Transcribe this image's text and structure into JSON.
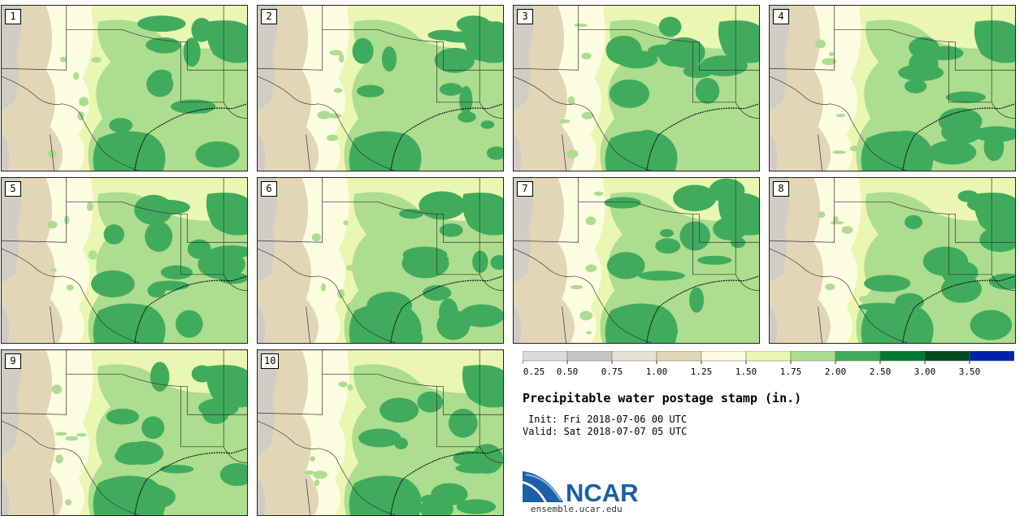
{
  "panels": [
    {
      "label": "1"
    },
    {
      "label": "2"
    },
    {
      "label": "3"
    },
    {
      "label": "4"
    },
    {
      "label": "5"
    },
    {
      "label": "6"
    },
    {
      "label": "7"
    },
    {
      "label": "8"
    },
    {
      "label": "9"
    },
    {
      "label": "10"
    }
  ],
  "legend": {
    "colors": [
      "#dbdbdb",
      "#c6c6c6",
      "#e5e3d4",
      "#e3d6b6",
      "#fcfce1",
      "#e9f7b2",
      "#addd8e",
      "#41ab5d",
      "#007a32",
      "#004a1f",
      "#0022aa"
    ],
    "ticks": [
      "0.25",
      "0.50",
      "0.75",
      "1.00",
      "1.25",
      "1.50",
      "1.75",
      "2.00",
      "2.50",
      "3.00",
      "3.50"
    ]
  },
  "map_colors": {
    "dry": "#e3d6b6",
    "moderate": "#fcfce1",
    "light_green": "#e9f7b2",
    "green": "#addd8e",
    "dark_green": "#41ab5d",
    "terrain": "#c9c9c9"
  },
  "title": "Precipitable water postage stamp (in.)",
  "init": "Init: Fri 2018-07-06 00 UTC",
  "valid": "Valid: Sat 2018-07-07 05 UTC",
  "logo_text": "NCAR",
  "site": "ensemble.ucar.edu"
}
